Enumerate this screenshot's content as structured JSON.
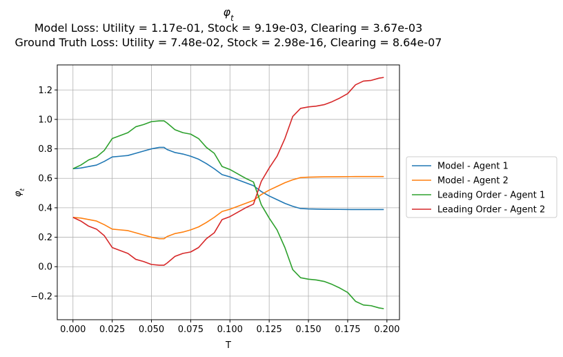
{
  "chart_data": {
    "type": "line",
    "title": "φt",
    "subtitle_lines": [
      "Model Loss: Utility = 1.17e-01, Stock = 9.19e-03, Clearing = 3.67e-03",
      "Ground Truth Loss: Utility = 7.48e-02, Stock = 2.98e-16, Clearing = 8.64e-07"
    ],
    "xlabel": "T",
    "ylabel": "φt",
    "xlim": [
      -0.01,
      0.208
    ],
    "ylim": [
      -0.36,
      1.37
    ],
    "xticks": [
      0.0,
      0.025,
      0.05,
      0.075,
      0.1,
      0.125,
      0.15,
      0.175,
      0.2
    ],
    "xtick_labels": [
      "0.000",
      "0.025",
      "0.050",
      "0.075",
      "0.100",
      "0.125",
      "0.150",
      "0.175",
      "0.200"
    ],
    "yticks": [
      -0.2,
      0.0,
      0.2,
      0.4,
      0.6,
      0.8,
      1.0,
      1.2
    ],
    "ytick_labels": [
      "−0.2",
      "0.0",
      "0.2",
      "0.4",
      "0.6",
      "0.8",
      "1.0",
      "1.2"
    ],
    "grid": true,
    "legend_position": "right, outside plot",
    "series": [
      {
        "name": "Model - Agent 1",
        "color": "#1f77b4",
        "x": [
          0.0,
          0.005,
          0.01,
          0.015,
          0.02,
          0.025,
          0.03,
          0.035,
          0.04,
          0.045,
          0.05,
          0.055,
          0.058,
          0.06,
          0.065,
          0.07,
          0.075,
          0.08,
          0.085,
          0.09,
          0.095,
          0.1,
          0.105,
          0.11,
          0.115,
          0.12,
          0.125,
          0.13,
          0.135,
          0.14,
          0.145,
          0.15,
          0.16,
          0.17,
          0.18,
          0.19,
          0.198
        ],
        "y": [
          0.665,
          0.67,
          0.68,
          0.69,
          0.715,
          0.745,
          0.75,
          0.755,
          0.77,
          0.785,
          0.8,
          0.81,
          0.81,
          0.795,
          0.775,
          0.765,
          0.75,
          0.73,
          0.7,
          0.665,
          0.625,
          0.61,
          0.59,
          0.57,
          0.55,
          0.51,
          0.48,
          0.455,
          0.43,
          0.41,
          0.395,
          0.392,
          0.39,
          0.389,
          0.388,
          0.388,
          0.388
        ]
      },
      {
        "name": "Model - Agent 2",
        "color": "#ff7f0e",
        "x": [
          0.0,
          0.005,
          0.01,
          0.015,
          0.02,
          0.025,
          0.03,
          0.035,
          0.04,
          0.045,
          0.05,
          0.055,
          0.058,
          0.06,
          0.065,
          0.07,
          0.075,
          0.08,
          0.085,
          0.09,
          0.095,
          0.1,
          0.105,
          0.11,
          0.115,
          0.12,
          0.125,
          0.13,
          0.135,
          0.14,
          0.145,
          0.15,
          0.16,
          0.17,
          0.18,
          0.19,
          0.198
        ],
        "y": [
          0.335,
          0.33,
          0.32,
          0.31,
          0.285,
          0.255,
          0.25,
          0.245,
          0.23,
          0.215,
          0.2,
          0.19,
          0.19,
          0.205,
          0.225,
          0.235,
          0.25,
          0.27,
          0.3,
          0.335,
          0.375,
          0.39,
          0.41,
          0.43,
          0.45,
          0.49,
          0.52,
          0.545,
          0.57,
          0.59,
          0.605,
          0.608,
          0.61,
          0.611,
          0.612,
          0.612,
          0.612
        ]
      },
      {
        "name": "Leading Order - Agent 1",
        "color": "#2ca02c",
        "x": [
          0.0,
          0.005,
          0.01,
          0.015,
          0.02,
          0.025,
          0.03,
          0.035,
          0.04,
          0.045,
          0.05,
          0.055,
          0.058,
          0.06,
          0.065,
          0.07,
          0.075,
          0.08,
          0.085,
          0.09,
          0.095,
          0.1,
          0.105,
          0.11,
          0.115,
          0.12,
          0.125,
          0.13,
          0.135,
          0.14,
          0.145,
          0.15,
          0.155,
          0.16,
          0.165,
          0.17,
          0.175,
          0.18,
          0.185,
          0.19,
          0.195,
          0.198
        ],
        "y": [
          0.665,
          0.69,
          0.725,
          0.745,
          0.79,
          0.87,
          0.89,
          0.91,
          0.95,
          0.965,
          0.985,
          0.99,
          0.99,
          0.975,
          0.93,
          0.91,
          0.9,
          0.87,
          0.81,
          0.77,
          0.68,
          0.66,
          0.63,
          0.6,
          0.575,
          0.42,
          0.33,
          0.25,
          0.13,
          -0.02,
          -0.075,
          -0.085,
          -0.09,
          -0.1,
          -0.12,
          -0.145,
          -0.175,
          -0.235,
          -0.26,
          -0.265,
          -0.28,
          -0.285
        ]
      },
      {
        "name": "Leading Order - Agent 2",
        "color": "#d62728",
        "x": [
          0.0,
          0.005,
          0.01,
          0.015,
          0.02,
          0.025,
          0.03,
          0.035,
          0.04,
          0.045,
          0.05,
          0.055,
          0.058,
          0.06,
          0.065,
          0.07,
          0.075,
          0.08,
          0.085,
          0.09,
          0.095,
          0.1,
          0.105,
          0.11,
          0.115,
          0.12,
          0.125,
          0.13,
          0.135,
          0.14,
          0.145,
          0.15,
          0.155,
          0.16,
          0.165,
          0.17,
          0.175,
          0.18,
          0.185,
          0.19,
          0.195,
          0.198
        ],
        "y": [
          0.335,
          0.31,
          0.275,
          0.255,
          0.21,
          0.13,
          0.11,
          0.09,
          0.05,
          0.035,
          0.015,
          0.01,
          0.01,
          0.025,
          0.07,
          0.09,
          0.1,
          0.13,
          0.19,
          0.23,
          0.32,
          0.34,
          0.37,
          0.4,
          0.425,
          0.58,
          0.67,
          0.75,
          0.87,
          1.02,
          1.075,
          1.085,
          1.09,
          1.1,
          1.12,
          1.145,
          1.175,
          1.235,
          1.26,
          1.265,
          1.28,
          1.285
        ]
      }
    ]
  }
}
